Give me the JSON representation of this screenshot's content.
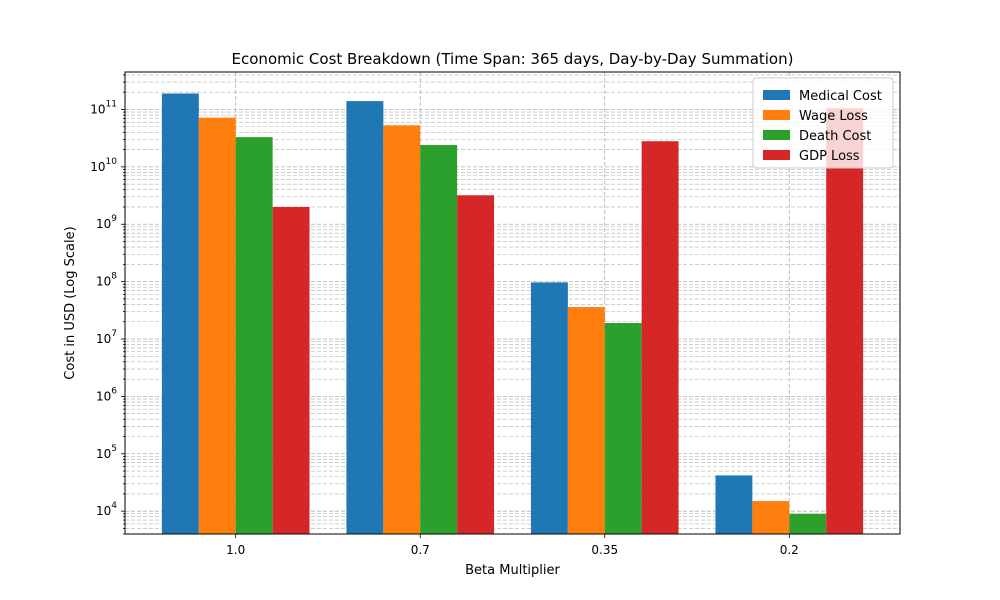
{
  "chart_data": {
    "type": "bar",
    "title": "Economic Cost Breakdown (Time Span: 365 days, Day-by-Day Summation)",
    "xlabel": "Beta Multiplier",
    "ylabel": "Cost in USD (Log Scale)",
    "yscale": "log",
    "ylim": [
      4000,
      450000000000
    ],
    "grid": "on, major and minor, dashed",
    "legend_position": "top-right",
    "categories": [
      "1.0",
      "0.7",
      "0.35",
      "0.2"
    ],
    "series": [
      {
        "name": "Medical Cost",
        "color": "#1f77b4",
        "values": [
          190000000000,
          140000000000,
          97000000,
          42000
        ]
      },
      {
        "name": "Wage Loss",
        "color": "#ff7f0e",
        "values": [
          72000000000,
          53000000000,
          36000000,
          15000
        ]
      },
      {
        "name": "Death Cost",
        "color": "#2ca02c",
        "values": [
          33000000000,
          24000000000,
          19000000,
          9000
        ]
      },
      {
        "name": "GDP Loss",
        "color": "#d62728",
        "values": [
          2000000000,
          3200000000,
          28000000000,
          105000000000
        ]
      }
    ],
    "y_ticks": [
      {
        "exp": 4,
        "label_base": "10",
        "label_exp": "4"
      },
      {
        "exp": 5,
        "label_base": "10",
        "label_exp": "5"
      },
      {
        "exp": 6,
        "label_base": "10",
        "label_exp": "6"
      },
      {
        "exp": 7,
        "label_base": "10",
        "label_exp": "7"
      },
      {
        "exp": 8,
        "label_base": "10",
        "label_exp": "8"
      },
      {
        "exp": 9,
        "label_base": "10",
        "label_exp": "9"
      },
      {
        "exp": 10,
        "label_base": "10",
        "label_exp": "10"
      },
      {
        "exp": 11,
        "label_base": "10",
        "label_exp": "11"
      }
    ]
  }
}
